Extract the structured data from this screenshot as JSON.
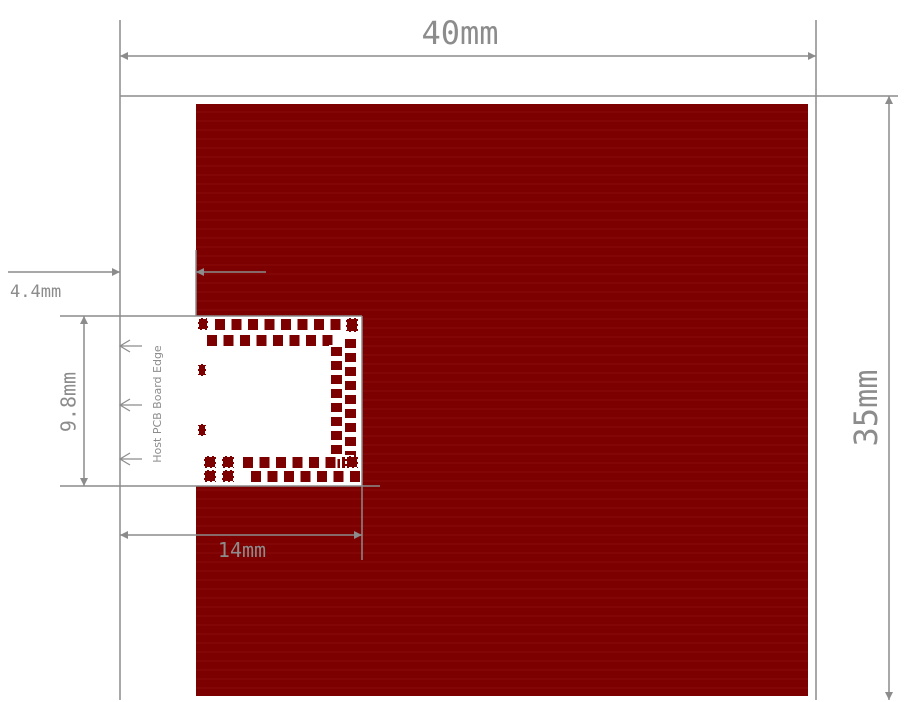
{
  "dimensions": {
    "width_label": "40mm",
    "height_label": "35mm",
    "offset_label": "4.4mm",
    "keepout_height_label": "9.8mm",
    "keepout_width_label": "14mm"
  },
  "annotations": {
    "host_edge_label": "Host PCB Board Edge"
  },
  "colors": {
    "copper": "#7d0000",
    "copper_line": "#8c1010",
    "dimension_line": "#8c8c8c",
    "pad_outline": "#ffffff",
    "background": "#ffffff"
  },
  "module": {
    "top_row_pads": 8,
    "inner_top_row_pads": 8,
    "bottom_row_pads": 7,
    "inner_bottom_row_pads": 7,
    "right_column_pads": 9
  }
}
